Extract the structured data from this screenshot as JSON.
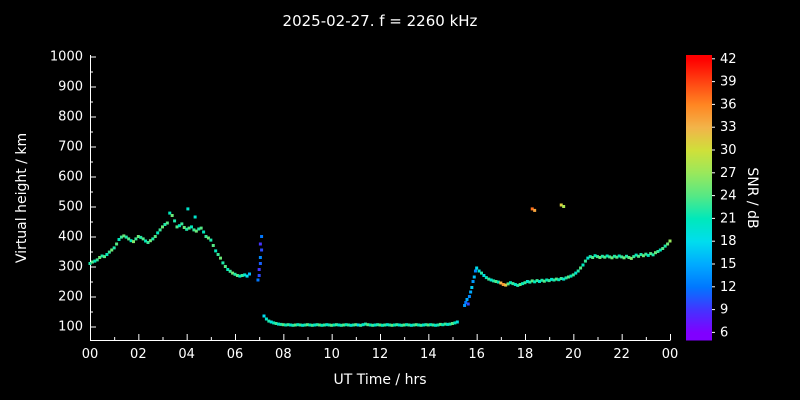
{
  "chart_data": {
    "type": "scatter",
    "title": "2025-02-27. f = 2260 kHz",
    "xlabel": "UT Time / hrs",
    "ylabel": "Virtual height / km",
    "xlim": [
      0,
      24
    ],
    "ylim": [
      55,
      1005
    ],
    "x_tick_values": [
      0,
      2,
      4,
      6,
      8,
      10,
      12,
      14,
      16,
      18,
      20,
      22,
      24
    ],
    "x_tick_labels": [
      "00",
      "02",
      "04",
      "06",
      "08",
      "10",
      "12",
      "14",
      "16",
      "18",
      "20",
      "22",
      "00"
    ],
    "y_tick_values": [
      100,
      200,
      300,
      400,
      500,
      600,
      700,
      800,
      900,
      1000
    ],
    "y_tick_labels": [
      "100",
      "200",
      "300",
      "400",
      "500",
      "600",
      "700",
      "800",
      "900",
      "1000"
    ],
    "colorbar": {
      "label": "SNR / dB",
      "min": 5,
      "max": 42.5,
      "tick_values": [
        6,
        9,
        12,
        15,
        18,
        21,
        24,
        27,
        30,
        33,
        36,
        39,
        42
      ],
      "tick_labels": [
        "6",
        "9",
        "12",
        "15",
        "18",
        "21",
        "24",
        "27",
        "30",
        "33",
        "36",
        "39",
        "42"
      ]
    },
    "colormap": [
      [
        6,
        "#8000ff"
      ],
      [
        9,
        "#4433ff"
      ],
      [
        12,
        "#0077ff"
      ],
      [
        15,
        "#00aaff"
      ],
      [
        18,
        "#00ddee"
      ],
      [
        21,
        "#00e8bb"
      ],
      [
        24,
        "#55e885"
      ],
      [
        27,
        "#99e85c"
      ],
      [
        30,
        "#cfe03a"
      ],
      [
        33,
        "#f2b44a"
      ],
      [
        36,
        "#ff8622"
      ],
      [
        39,
        "#ff4412"
      ],
      [
        42,
        "#ff0000"
      ]
    ],
    "background_color": "#000000",
    "axis_color": "#ffffff",
    "grid": false,
    "legend": "none",
    "points": [
      [
        0,
        310,
        22
      ],
      [
        0.1,
        315,
        24
      ],
      [
        0.2,
        318,
        21
      ],
      [
        0.3,
        322,
        23
      ],
      [
        0.4,
        330,
        25
      ],
      [
        0.5,
        335,
        22
      ],
      [
        0.6,
        333,
        24
      ],
      [
        0.7,
        340,
        21
      ],
      [
        0.8,
        348,
        23
      ],
      [
        0.9,
        355,
        25
      ],
      [
        1,
        362,
        22
      ],
      [
        1.1,
        375,
        24
      ],
      [
        1.2,
        390,
        21
      ],
      [
        1.3,
        398,
        23
      ],
      [
        1.4,
        402,
        25
      ],
      [
        1.5,
        398,
        22
      ],
      [
        1.6,
        392,
        24
      ],
      [
        1.7,
        386,
        21
      ],
      [
        1.8,
        383,
        26
      ],
      [
        1.9,
        392,
        23
      ],
      [
        2,
        400,
        25
      ],
      [
        2.1,
        397,
        22
      ],
      [
        2.2,
        392,
        24
      ],
      [
        2.3,
        385,
        21
      ],
      [
        2.4,
        380,
        23
      ],
      [
        2.5,
        386,
        25
      ],
      [
        2.6,
        392,
        22
      ],
      [
        2.7,
        400,
        24
      ],
      [
        2.8,
        412,
        21
      ],
      [
        2.9,
        422,
        23
      ],
      [
        3,
        432,
        25
      ],
      [
        3.1,
        440,
        22
      ],
      [
        3.2,
        445,
        24
      ],
      [
        3.3,
        478,
        21
      ],
      [
        3.4,
        470,
        25
      ],
      [
        3.5,
        452,
        22
      ],
      [
        3.6,
        432,
        24
      ],
      [
        3.7,
        436,
        21
      ],
      [
        3.8,
        442,
        23
      ],
      [
        3.9,
        430,
        25
      ],
      [
        4,
        424,
        22
      ],
      [
        4.05,
        492,
        20
      ],
      [
        4.1,
        428,
        24
      ],
      [
        4.2,
        432,
        21
      ],
      [
        4.3,
        422,
        23
      ],
      [
        4.35,
        465,
        20
      ],
      [
        4.4,
        418,
        25
      ],
      [
        4.5,
        425,
        22
      ],
      [
        4.6,
        428,
        24
      ],
      [
        4.7,
        415,
        21
      ],
      [
        4.8,
        400,
        23
      ],
      [
        4.9,
        395,
        25
      ],
      [
        5,
        388,
        22
      ],
      [
        5.1,
        370,
        24
      ],
      [
        5.2,
        352,
        21
      ],
      [
        5.3,
        340,
        23
      ],
      [
        5.4,
        328,
        25
      ],
      [
        5.5,
        312,
        22
      ],
      [
        5.6,
        300,
        24
      ],
      [
        5.7,
        290,
        21
      ],
      [
        5.8,
        284,
        23
      ],
      [
        5.9,
        278,
        25
      ],
      [
        6,
        274,
        22
      ],
      [
        6.1,
        270,
        24
      ],
      [
        6.2,
        268,
        21
      ],
      [
        6.3,
        270,
        23
      ],
      [
        6.4,
        272,
        20
      ],
      [
        6.5,
        268,
        18
      ],
      [
        6.6,
        275,
        16
      ],
      [
        6.95,
        255,
        12
      ],
      [
        7,
        270,
        10
      ],
      [
        7,
        290,
        9
      ],
      [
        7.05,
        310,
        11
      ],
      [
        7.05,
        330,
        13
      ],
      [
        7.05,
        375,
        9
      ],
      [
        7.1,
        355,
        10
      ],
      [
        7.1,
        400,
        12
      ],
      [
        7.2,
        135,
        18
      ],
      [
        7.3,
        125,
        20
      ],
      [
        7.4,
        118,
        22
      ],
      [
        7.5,
        115,
        19
      ],
      [
        7.6,
        112,
        21
      ],
      [
        7.7,
        110,
        23
      ],
      [
        7.8,
        108,
        20
      ],
      [
        7.9,
        107,
        22
      ],
      [
        8,
        106,
        24
      ],
      [
        8.1,
        105,
        21
      ],
      [
        8.2,
        106,
        23
      ],
      [
        8.3,
        105,
        20
      ],
      [
        8.4,
        104,
        22
      ],
      [
        8.5,
        105,
        24
      ],
      [
        8.6,
        106,
        21
      ],
      [
        8.7,
        105,
        23
      ],
      [
        8.8,
        104,
        20
      ],
      [
        8.9,
        105,
        22
      ],
      [
        9,
        106,
        24
      ],
      [
        9.1,
        105,
        21
      ],
      [
        9.2,
        104,
        23
      ],
      [
        9.3,
        105,
        20
      ],
      [
        9.4,
        106,
        22
      ],
      [
        9.5,
        105,
        24
      ],
      [
        9.6,
        104,
        21
      ],
      [
        9.7,
        105,
        23
      ],
      [
        9.8,
        106,
        20
      ],
      [
        9.9,
        105,
        22
      ],
      [
        10,
        104,
        24
      ],
      [
        10.1,
        105,
        21
      ],
      [
        10.2,
        106,
        23
      ],
      [
        10.3,
        105,
        20
      ],
      [
        10.4,
        104,
        22
      ],
      [
        10.5,
        105,
        24
      ],
      [
        10.6,
        106,
        21
      ],
      [
        10.7,
        105,
        23
      ],
      [
        10.8,
        104,
        20
      ],
      [
        10.9,
        105,
        22
      ],
      [
        11,
        106,
        24
      ],
      [
        11.1,
        105,
        18
      ],
      [
        11.2,
        104,
        23
      ],
      [
        11.3,
        106,
        20
      ],
      [
        11.4,
        108,
        22
      ],
      [
        11.5,
        106,
        24
      ],
      [
        11.6,
        105,
        21
      ],
      [
        11.7,
        104,
        23
      ],
      [
        11.8,
        105,
        20
      ],
      [
        11.9,
        106,
        22
      ],
      [
        12,
        105,
        24
      ],
      [
        12.1,
        104,
        21
      ],
      [
        12.2,
        105,
        23
      ],
      [
        12.3,
        106,
        20
      ],
      [
        12.4,
        105,
        22
      ],
      [
        12.5,
        104,
        24
      ],
      [
        12.6,
        105,
        21
      ],
      [
        12.7,
        106,
        23
      ],
      [
        12.8,
        105,
        20
      ],
      [
        12.9,
        104,
        22
      ],
      [
        13,
        105,
        24
      ],
      [
        13.1,
        106,
        21
      ],
      [
        13.2,
        105,
        23
      ],
      [
        13.3,
        104,
        20
      ],
      [
        13.4,
        105,
        22
      ],
      [
        13.5,
        106,
        24
      ],
      [
        13.6,
        105,
        21
      ],
      [
        13.7,
        104,
        23
      ],
      [
        13.8,
        105,
        20
      ],
      [
        13.9,
        106,
        22
      ],
      [
        14,
        105,
        24
      ],
      [
        14.1,
        106,
        21
      ],
      [
        14.2,
        105,
        23
      ],
      [
        14.3,
        104,
        20
      ],
      [
        14.4,
        105,
        22
      ],
      [
        14.5,
        107,
        24
      ],
      [
        14.6,
        106,
        21
      ],
      [
        14.7,
        108,
        23
      ],
      [
        14.8,
        107,
        20
      ],
      [
        14.9,
        108,
        22
      ],
      [
        15,
        110,
        24
      ],
      [
        15.1,
        112,
        21
      ],
      [
        15.2,
        115,
        19
      ],
      [
        15.5,
        170,
        14
      ],
      [
        15.55,
        180,
        12
      ],
      [
        15.6,
        190,
        15
      ],
      [
        15.65,
        175,
        10
      ],
      [
        15.7,
        200,
        13
      ],
      [
        15.75,
        215,
        15
      ],
      [
        15.8,
        230,
        17
      ],
      [
        15.85,
        250,
        14
      ],
      [
        15.9,
        265,
        16
      ],
      [
        15.95,
        285,
        13
      ],
      [
        16,
        295,
        18
      ],
      [
        16.1,
        285,
        20
      ],
      [
        16.2,
        278,
        22
      ],
      [
        16.3,
        270,
        19
      ],
      [
        16.4,
        263,
        21
      ],
      [
        16.5,
        258,
        23
      ],
      [
        16.6,
        255,
        20
      ],
      [
        16.7,
        252,
        22
      ],
      [
        16.8,
        250,
        24
      ],
      [
        16.9,
        248,
        21
      ],
      [
        17,
        245,
        33
      ],
      [
        17.1,
        240,
        35
      ],
      [
        17.2,
        238,
        32
      ],
      [
        17.3,
        242,
        24
      ],
      [
        17.4,
        246,
        21
      ],
      [
        17.5,
        243,
        23
      ],
      [
        17.6,
        240,
        20
      ],
      [
        17.7,
        237,
        22
      ],
      [
        17.8,
        240,
        24
      ],
      [
        17.9,
        243,
        21
      ],
      [
        18,
        246,
        23
      ],
      [
        18.1,
        250,
        20
      ],
      [
        18.2,
        248,
        22
      ],
      [
        18.3,
        252,
        24
      ],
      [
        18.4,
        249,
        21
      ],
      [
        18.5,
        253,
        23
      ],
      [
        18.6,
        250,
        20
      ],
      [
        18.7,
        254,
        22
      ],
      [
        18.8,
        251,
        24
      ],
      [
        18.9,
        255,
        21
      ],
      [
        19,
        253,
        23
      ],
      [
        19.1,
        257,
        20
      ],
      [
        19.2,
        255,
        22
      ],
      [
        19.3,
        258,
        24
      ],
      [
        19.4,
        256,
        21
      ],
      [
        19.5,
        260,
        23
      ],
      [
        19.6,
        258,
        20
      ],
      [
        19.7,
        262,
        22
      ],
      [
        19.8,
        265,
        24
      ],
      [
        19.9,
        268,
        21
      ],
      [
        20,
        272,
        23
      ],
      [
        20.1,
        278,
        20
      ],
      [
        20.2,
        285,
        22
      ],
      [
        20.3,
        295,
        24
      ],
      [
        20.4,
        305,
        21
      ],
      [
        20.5,
        318,
        23
      ],
      [
        20.6,
        328,
        20
      ],
      [
        20.7,
        333,
        22
      ],
      [
        20.8,
        330,
        24
      ],
      [
        20.9,
        336,
        21
      ],
      [
        21,
        333,
        23
      ],
      [
        21.1,
        330,
        25
      ],
      [
        21.2,
        334,
        22
      ],
      [
        21.3,
        331,
        24
      ],
      [
        21.4,
        335,
        21
      ],
      [
        21.5,
        332,
        23
      ],
      [
        21.6,
        329,
        25
      ],
      [
        21.7,
        334,
        22
      ],
      [
        21.8,
        331,
        24
      ],
      [
        21.9,
        335,
        21
      ],
      [
        22,
        332,
        23
      ],
      [
        22.1,
        329,
        25
      ],
      [
        22.2,
        334,
        22
      ],
      [
        22.3,
        330,
        24
      ],
      [
        22.4,
        327,
        26
      ],
      [
        22.5,
        333,
        23
      ],
      [
        22.6,
        338,
        21
      ],
      [
        22.7,
        334,
        24
      ],
      [
        22.8,
        340,
        22
      ],
      [
        22.9,
        336,
        25
      ],
      [
        23,
        341,
        23
      ],
      [
        23.1,
        337,
        21
      ],
      [
        23.2,
        343,
        24
      ],
      [
        23.3,
        339,
        22
      ],
      [
        23.4,
        346,
        25
      ],
      [
        23.5,
        350,
        23
      ],
      [
        23.6,
        355,
        21
      ],
      [
        23.7,
        360,
        24
      ],
      [
        23.8,
        368,
        22
      ],
      [
        23.9,
        375,
        25
      ],
      [
        24,
        385,
        27
      ],
      [
        18.3,
        492,
        37
      ],
      [
        18.4,
        487,
        34
      ],
      [
        19.5,
        505,
        31
      ],
      [
        19.6,
        500,
        28
      ]
    ]
  }
}
